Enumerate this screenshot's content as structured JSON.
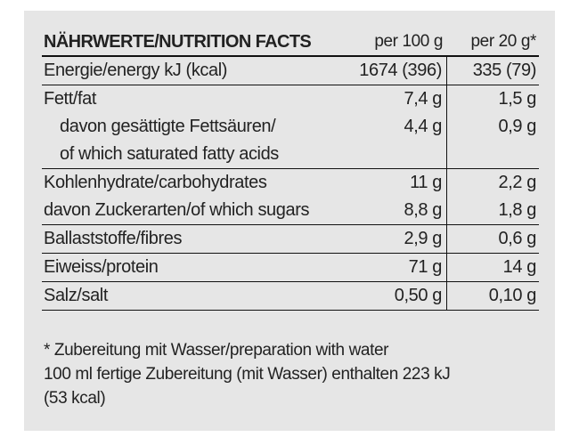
{
  "table": {
    "header": {
      "title": "NÄHRWERTE/NUTRITION FACTS",
      "col1": "per 100 g",
      "col2": "per 20 g*"
    },
    "rows": [
      {
        "name": "energy",
        "label": [
          "Energie/energy kJ (kcal)"
        ],
        "per100": "1674 (396)",
        "per20": "335 (79)"
      },
      {
        "name": "fat",
        "label": [
          "Fett/fat",
          "davon gesättigte Fettsäuren/",
          "of which saturated fatty acids"
        ],
        "per100": [
          "7,4 g",
          "4,4 g"
        ],
        "per20": [
          "1,5 g",
          "0,9 g"
        ]
      },
      {
        "name": "carbohydrates",
        "label": [
          "Kohlenhydrate/carbohydrates",
          "davon Zuckerarten/of which sugars"
        ],
        "per100": [
          "11 g",
          "8,8 g"
        ],
        "per20": [
          "2,2 g",
          "1,8 g"
        ]
      },
      {
        "name": "fibres",
        "label": [
          "Ballaststoffe/fibres"
        ],
        "per100": "2,9 g",
        "per20": "0,6 g"
      },
      {
        "name": "protein",
        "label": [
          "Eiweiss/protein"
        ],
        "per100": "71 g",
        "per20": "14 g"
      },
      {
        "name": "salt",
        "label": [
          "Salz/salt"
        ],
        "per100": "0,50 g",
        "per20": "0,10 g"
      }
    ]
  },
  "footnote": {
    "line1": "* Zubereitung mit Wasser/preparation with water",
    "line2": "100 ml fertige Zubereitung (mit Wasser) enthalten 223 kJ",
    "line3": "(53 kcal)"
  }
}
